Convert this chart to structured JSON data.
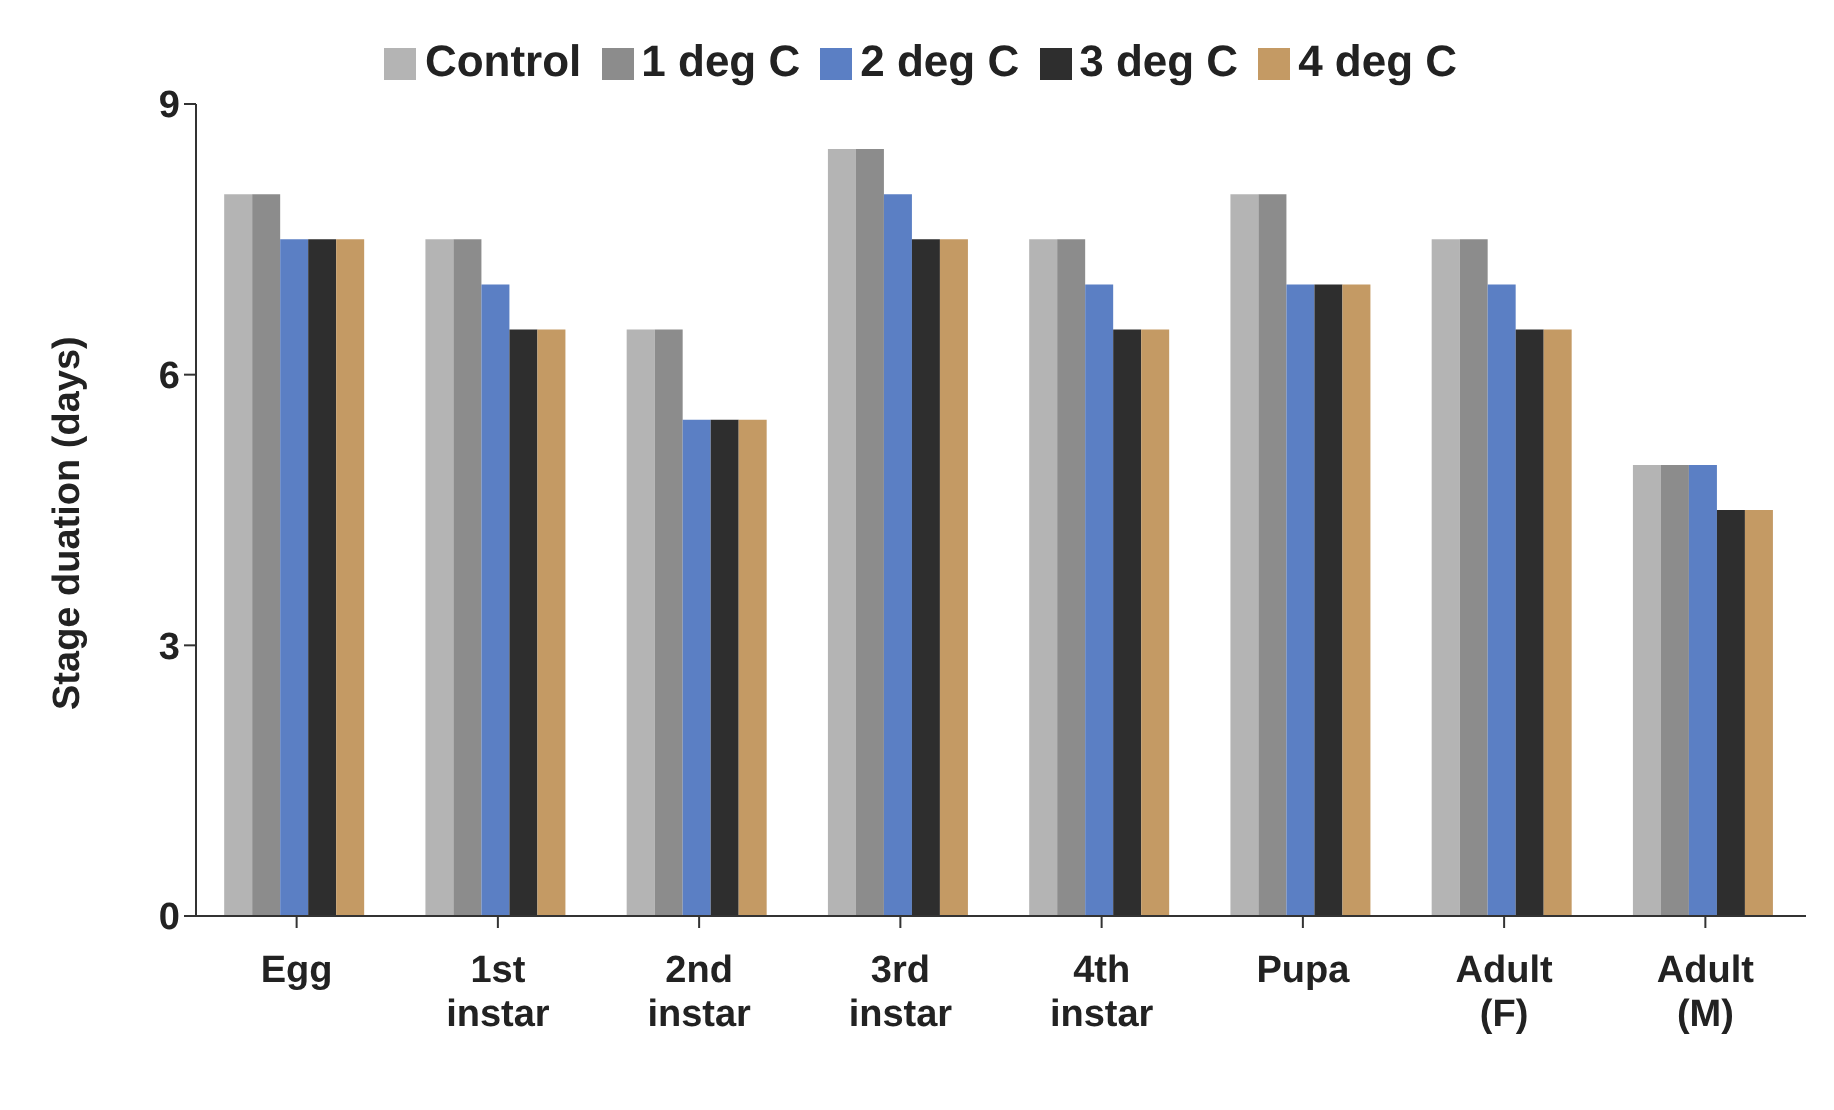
{
  "chart_data": {
    "type": "bar",
    "ylabel": "Stage duation (days)",
    "categories": [
      "Egg",
      "1st instar",
      "2nd instar",
      "3rd instar",
      "4th instar",
      "Pupa",
      "Adult (F)",
      "Adult (M)"
    ],
    "series": [
      {
        "name": "Control",
        "color": "#b4b4b4",
        "values": [
          8,
          7.5,
          6.5,
          8.5,
          7.5,
          8,
          7.5,
          5
        ]
      },
      {
        "name": "1 deg C",
        "color": "#8c8c8c",
        "values": [
          8,
          7.5,
          6.5,
          8.5,
          7.5,
          8,
          7.5,
          5
        ]
      },
      {
        "name": "2 deg C",
        "color": "#5b7fc4",
        "values": [
          7.5,
          7,
          5.5,
          8,
          7,
          7,
          7,
          5
        ]
      },
      {
        "name": "3 deg C",
        "color": "#2e2e2e",
        "values": [
          7.5,
          6.5,
          5.5,
          7.5,
          6.5,
          7,
          6.5,
          4.5
        ]
      },
      {
        "name": "4 deg C",
        "color": "#c49a64",
        "values": [
          7.5,
          6.5,
          5.5,
          7.5,
          6.5,
          7,
          6.5,
          4.5
        ]
      }
    ],
    "ylim": [
      0,
      9
    ],
    "yticks": [
      0,
      3,
      6,
      9
    ],
    "grid": false,
    "legend": "top"
  }
}
